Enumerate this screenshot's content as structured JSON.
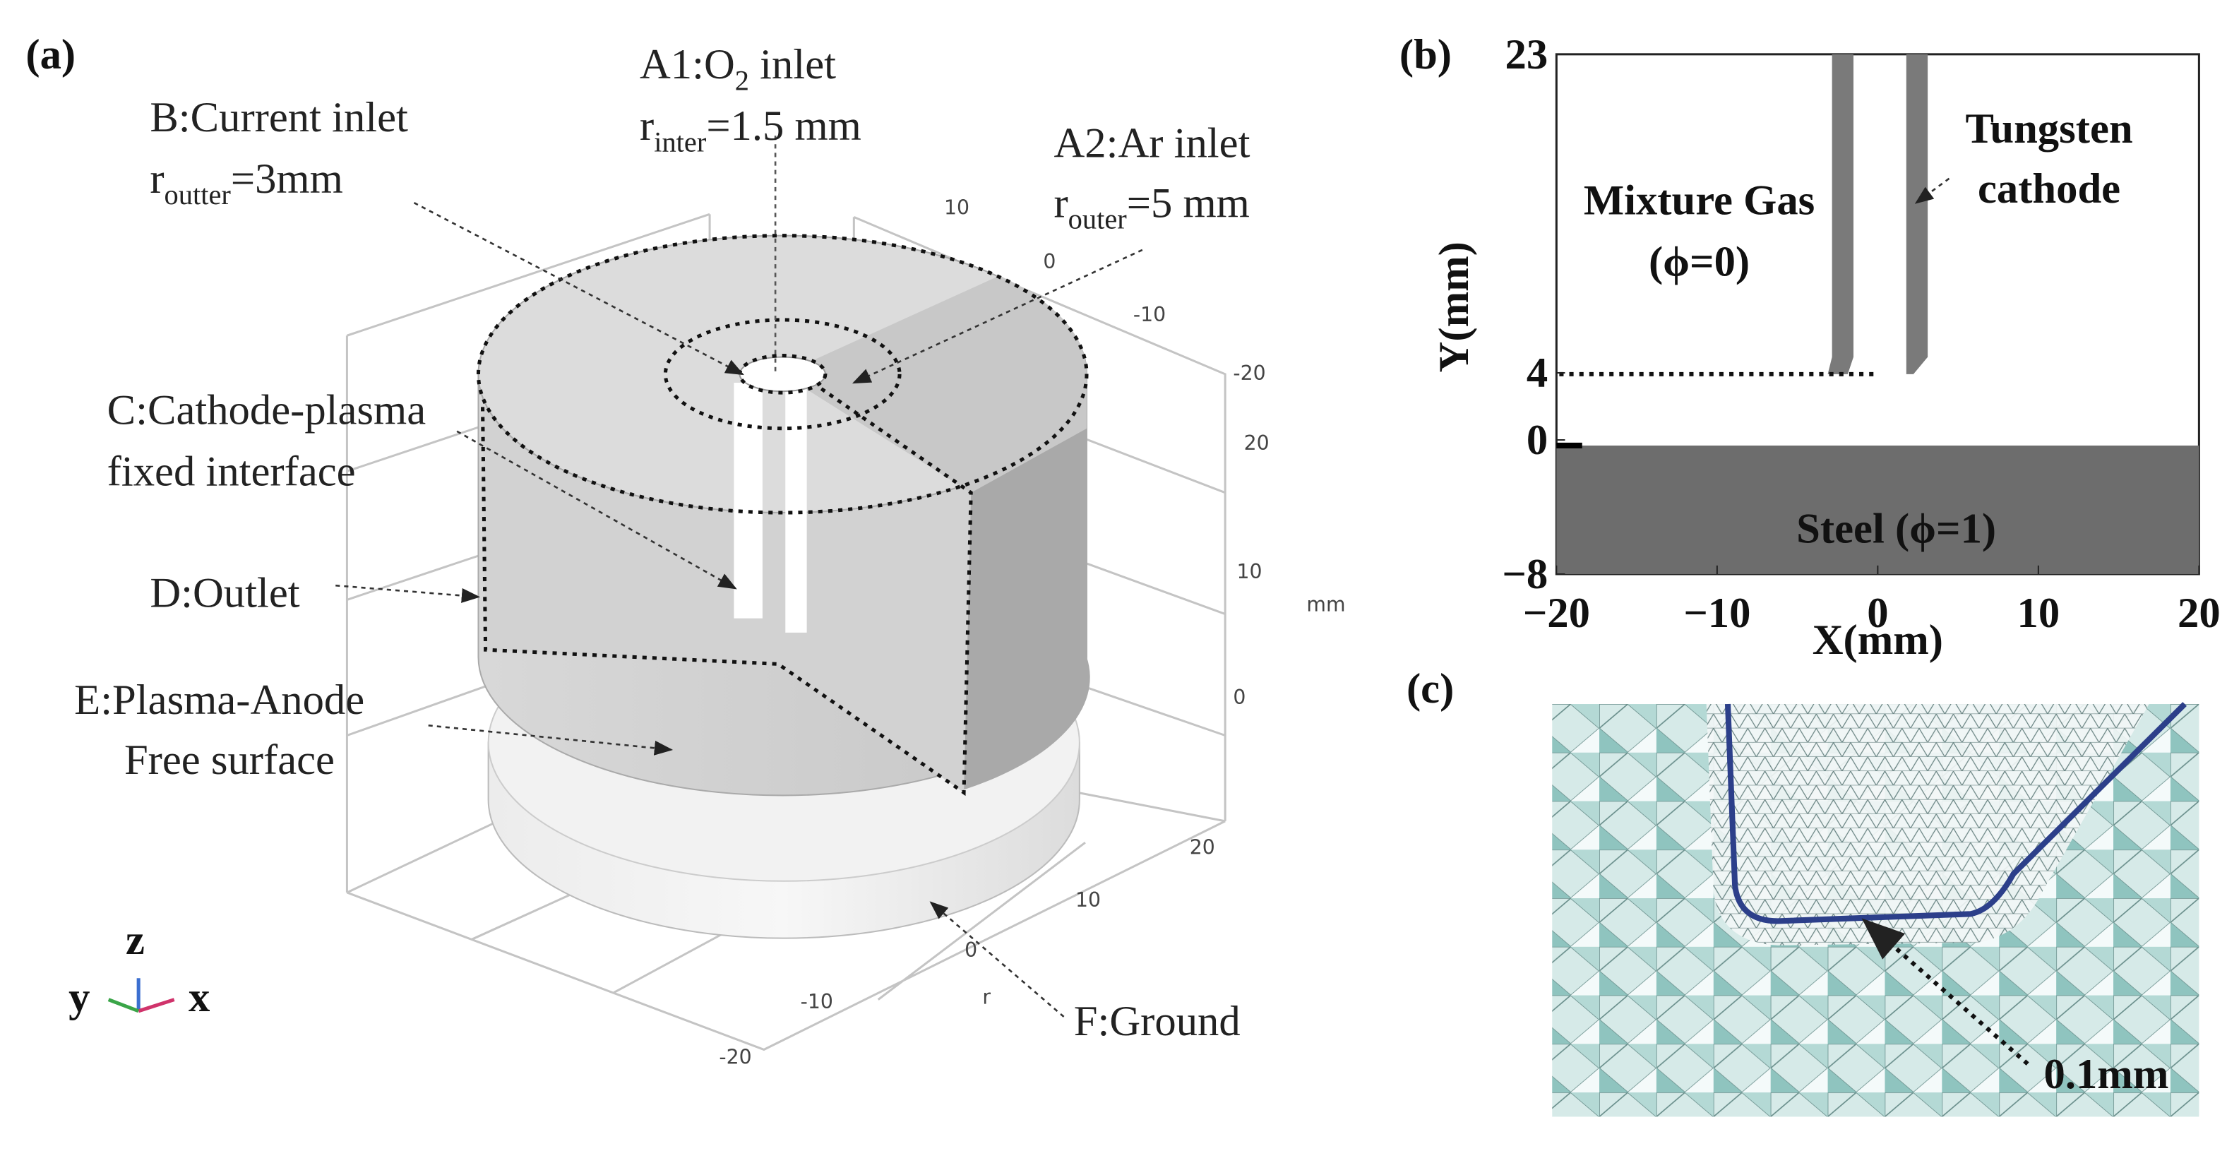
{
  "panel_a": {
    "label": "(a)",
    "a1_inlet": {
      "line1": [
        "A1:O",
        "2",
        " inlet"
      ],
      "line2": [
        "r",
        "inter",
        "=1.5 mm"
      ]
    },
    "b_current_inlet": {
      "line1": "B:Current inlet",
      "line2": [
        "r",
        "outter",
        "=3mm"
      ]
    },
    "a2_ar_inlet": {
      "line1": "A2:Ar inlet",
      "line2": [
        "r",
        "outer",
        "=5 mm"
      ]
    },
    "c_interface": [
      "C:Cathode-plasma",
      "fixed interface"
    ],
    "d_outlet": "D:Outlet",
    "e_free_surface": [
      "E:Plasma-Anode",
      "Free surface"
    ],
    "f_ground": "F:Ground",
    "axis_labels": {
      "top": [
        "10",
        "0",
        "-10",
        "-20"
      ],
      "right": [
        "20",
        "10",
        "0"
      ],
      "unit": "mm",
      "bottom": [
        "20",
        "10",
        "0",
        "-10",
        "-20"
      ],
      "r": "r"
    },
    "triad": {
      "z": "z",
      "y": "y",
      "x": "x"
    }
  },
  "panel_b": {
    "label": "(b)",
    "xlim": [
      -20,
      20
    ],
    "ylim": [
      -8,
      23
    ],
    "xticks": [
      {
        "value": -20,
        "label": "−20"
      },
      {
        "value": -10,
        "label": "−10"
      },
      0,
      10,
      20
    ],
    "yticks": [
      23,
      4,
      0,
      {
        "value": -8,
        "label": "−8"
      }
    ],
    "xlabel": "X(mm)",
    "ylabel": "Y(mm)",
    "mixture_gas": [
      "Mixture Gas",
      "(ϕ=0)"
    ],
    "tungsten_cathode": [
      "Tungsten",
      "cathode"
    ],
    "steel": "Steel (ϕ=1)"
  },
  "panel_c": {
    "label": "(c)",
    "scale_note": "0.1mm"
  }
}
